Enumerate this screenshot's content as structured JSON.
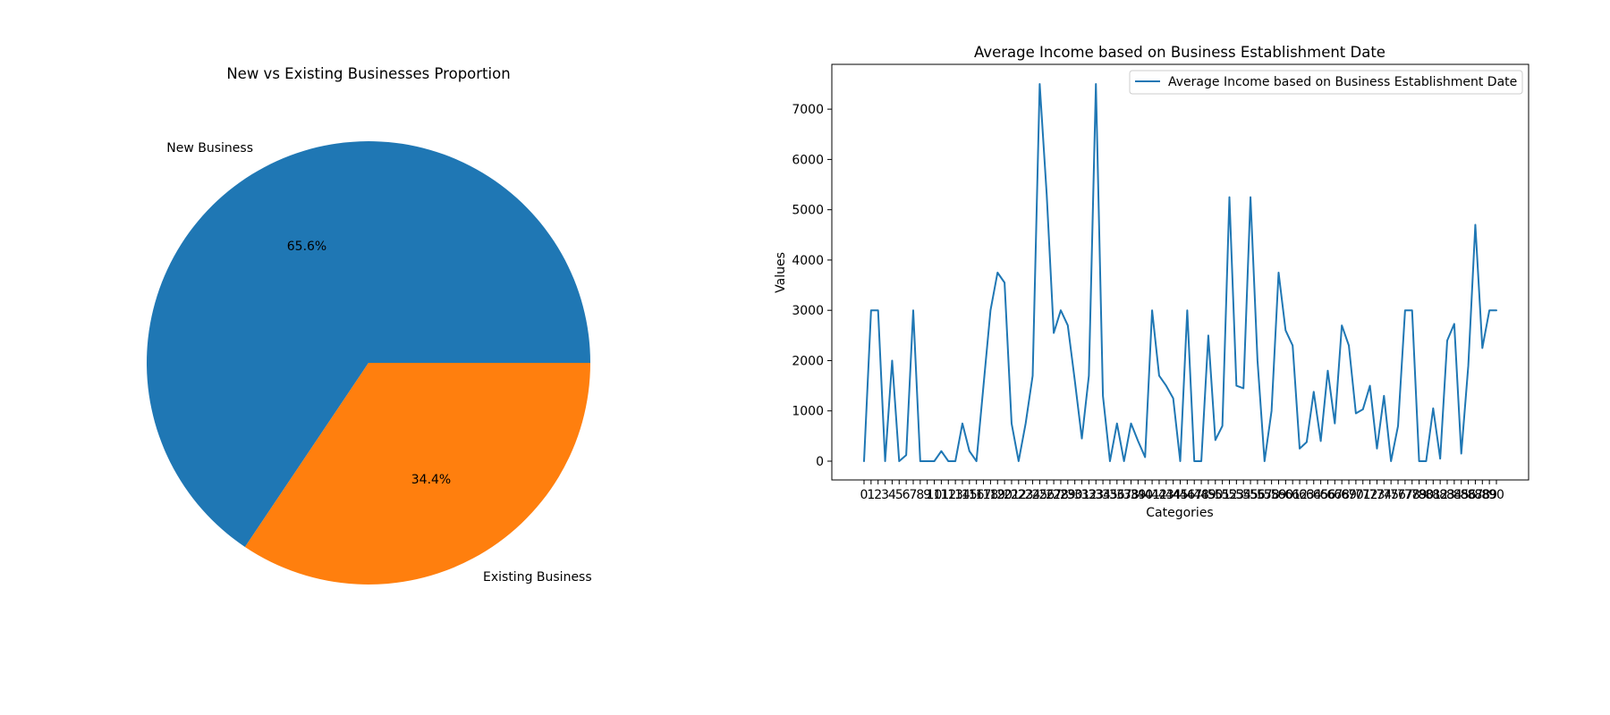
{
  "chart_data": [
    {
      "type": "pie",
      "title": "New vs Existing Businesses Proportion",
      "labels": [
        "New Business",
        "Existing Business"
      ],
      "values": [
        65.6,
        34.4
      ],
      "pct_labels": [
        "65.6%",
        "34.4%"
      ],
      "colors": [
        "#1f77b4",
        "#ff7f0e"
      ]
    },
    {
      "type": "line",
      "title": "Average Income based on Business Establishment Date",
      "xlabel": "Categories",
      "ylabel": "Values",
      "legend": "top-right",
      "grid": false,
      "ylim": [
        0,
        7500
      ],
      "yticks": [
        0,
        1000,
        2000,
        3000,
        4000,
        5000,
        6000,
        7000
      ],
      "color": "#1f77b4",
      "series": [
        {
          "name": "Average Income based on Business Establishment Date",
          "values": [
            0,
            3000,
            3000,
            0,
            2000,
            0,
            120,
            3000,
            0,
            0,
            0,
            200,
            0,
            0,
            750,
            200,
            0,
            1500,
            3000,
            3750,
            3550,
            750,
            0,
            750,
            1700,
            7500,
            5300,
            2550,
            3000,
            2700,
            1600,
            450,
            1700,
            7500,
            1300,
            0,
            750,
            0,
            750,
            400,
            80,
            3000,
            1700,
            1500,
            1250,
            0,
            3000,
            0,
            0,
            2500,
            420,
            700,
            5250,
            1500,
            1450,
            5250,
            2000,
            0,
            1000,
            3750,
            2600,
            2300,
            250,
            380,
            1380,
            400,
            1800,
            750,
            2700,
            2300,
            950,
            1030,
            1500,
            250,
            1300,
            0,
            700,
            3000,
            3000,
            0,
            0,
            1050,
            50,
            2400,
            2730,
            150,
            1900,
            4700,
            2250,
            3000,
            3000
          ]
        }
      ],
      "tick_labels": [
        "0",
        "1",
        "2",
        "3",
        "4",
        "5",
        "6",
        "7",
        "8",
        "9",
        "10",
        "11",
        "12",
        "13",
        "14",
        "15",
        "16",
        "17",
        "18",
        "19",
        "20",
        "21",
        "22",
        "23",
        "24",
        "25",
        "26",
        "27",
        "28",
        "29",
        "30",
        "31",
        "32",
        "33",
        "34",
        "35",
        "36",
        "37",
        "38",
        "39",
        "40",
        "41",
        "42",
        "43",
        "44",
        "45",
        "46",
        "47",
        "48",
        "49",
        "50",
        "51",
        "52",
        "53",
        "54",
        "55",
        "56",
        "57",
        "58",
        "59",
        "60",
        "61",
        "62",
        "63",
        "64",
        "65",
        "66",
        "67",
        "68",
        "69",
        "70",
        "71",
        "72",
        "73",
        "74",
        "75",
        "76",
        "77",
        "78",
        "79",
        "80",
        "81",
        "82",
        "83",
        "84",
        "85",
        "86",
        "87",
        "88",
        "89",
        "90"
      ]
    }
  ]
}
